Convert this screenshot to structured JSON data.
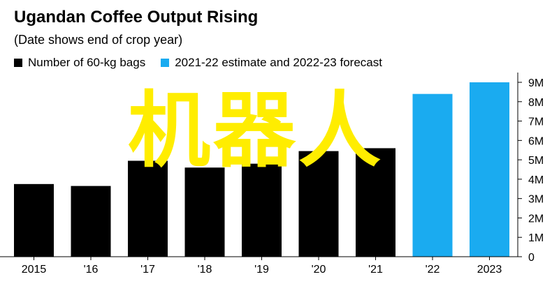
{
  "header": {
    "title": "Ugandan Coffee Output Rising",
    "subtitle": "(Date shows end of crop year)"
  },
  "legend": {
    "items": [
      {
        "label": "Number of 60-kg bags",
        "color": "#000000"
      },
      {
        "label": "2021-22 estimate and 2022-23 forecast",
        "color": "#1aabf0"
      }
    ]
  },
  "watermark": "机器人",
  "chart_data": {
    "type": "bar",
    "title": "Ugandan Coffee Output Rising",
    "subtitle": "(Date shows end of crop year)",
    "categories": [
      "2015",
      "'16",
      "'17",
      "'18",
      "'19",
      "'20",
      "'21",
      "'22",
      "2023"
    ],
    "series": [
      {
        "name": "Number of 60-kg bags",
        "color": "#000000",
        "values": [
          3.75,
          3.65,
          4.95,
          4.6,
          4.8,
          5.45,
          5.6,
          null,
          null
        ]
      },
      {
        "name": "2021-22 estimate and 2022-23 forecast",
        "color": "#1aabf0",
        "values": [
          null,
          null,
          null,
          null,
          null,
          null,
          null,
          8.4,
          9.0
        ]
      }
    ],
    "ylim": [
      0,
      9
    ],
    "yticks": [
      "0",
      "1M",
      "2M",
      "3M",
      "4M",
      "5M",
      "6M",
      "7M",
      "8M",
      "9M"
    ],
    "axis_side": "right",
    "grid": false,
    "legend_position": "top-left"
  }
}
